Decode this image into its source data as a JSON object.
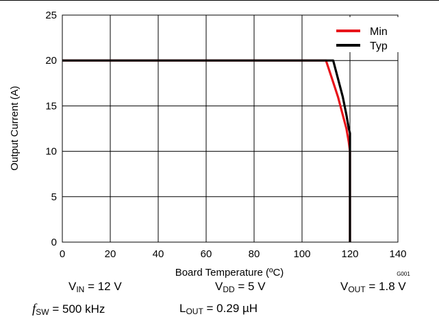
{
  "chart_data": {
    "type": "line",
    "xlabel": "Board Temperature (ºC)",
    "ylabel": "Output Current (A)",
    "xlim": [
      0,
      140
    ],
    "ylim": [
      0,
      25
    ],
    "xticks": [
      0,
      20,
      40,
      60,
      80,
      100,
      120,
      140
    ],
    "yticks": [
      0,
      5,
      10,
      15,
      20,
      25
    ],
    "grid": true,
    "legend_position": "top-right",
    "figure_code": "G001",
    "series": [
      {
        "name": "Min",
        "color": "#e8141a",
        "x": [
          0,
          110,
          112.5,
          115,
          117,
          118.5,
          119.5,
          120,
          120
        ],
        "y": [
          20,
          20,
          18,
          16,
          14,
          12.5,
          11,
          10,
          0
        ]
      },
      {
        "name": "Typ",
        "color": "#000000",
        "x": [
          0,
          113,
          115,
          117,
          118.5,
          119.5,
          120,
          120,
          120
        ],
        "y": [
          20,
          20,
          18,
          16,
          14,
          12.5,
          12,
          10,
          0
        ]
      }
    ]
  },
  "conditions": {
    "vin": {
      "symbol": "V",
      "sub": "IN",
      "value": " = 12 V"
    },
    "vdd": {
      "symbol": "V",
      "sub": "DD",
      "value": " = 5 V"
    },
    "vout": {
      "symbol": "V",
      "sub": "OUT",
      "value": " = 1.8 V"
    },
    "fsw": {
      "symbol": "f",
      "sub": "SW",
      "value": " = 500 kHz"
    },
    "lout": {
      "symbol": "L",
      "sub": "OUT",
      "value": " = 0.29 µH"
    }
  }
}
